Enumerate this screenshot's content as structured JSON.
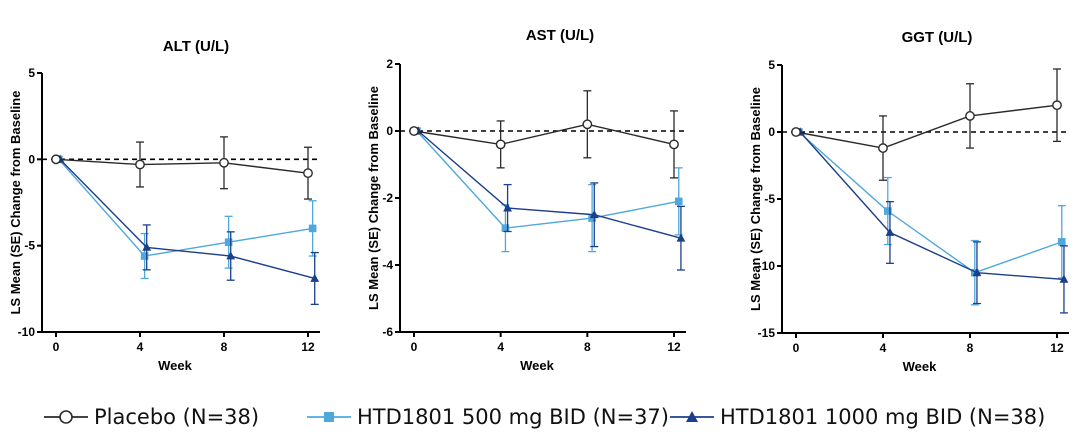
{
  "chart_data": [
    {
      "type": "line",
      "title": "ALT (U/L)",
      "xlabel": "Week",
      "ylabel": "LS Mean (SE) Change from Baseline",
      "x": [
        0,
        4,
        8,
        12
      ],
      "xticks": [
        "0",
        "4",
        "8",
        "12"
      ],
      "ylim": [
        -10,
        5
      ],
      "yticks": [
        5,
        0,
        -5,
        -10
      ],
      "yticklabels": [
        "5",
        "0",
        "-5",
        "-10"
      ],
      "reference_line": 0,
      "series": [
        {
          "name": "Placebo (N=38)",
          "values": [
            0,
            -0.3,
            -0.2,
            -0.8
          ],
          "errors": [
            0,
            1.3,
            1.5,
            1.5
          ]
        },
        {
          "name": "HTD1801 500 mg BID (N=37)",
          "values": [
            0,
            -5.6,
            -4.8,
            -4.0
          ],
          "errors": [
            0,
            1.3,
            1.5,
            1.6
          ]
        },
        {
          "name": "HTD1801 1000 mg BID (N=38)",
          "values": [
            0,
            -5.1,
            -5.6,
            -6.9
          ],
          "errors": [
            0,
            1.3,
            1.4,
            1.5
          ]
        }
      ]
    },
    {
      "type": "line",
      "title": "AST (U/L)",
      "xlabel": "Week",
      "ylabel": "LS Mean (SE) Change from Baseline",
      "x": [
        0,
        4,
        8,
        12
      ],
      "xticks": [
        "0",
        "4",
        "8",
        "12"
      ],
      "ylim": [
        -6,
        2
      ],
      "yticks": [
        2,
        0,
        -2,
        -4,
        -6
      ],
      "yticklabels": [
        "2",
        "0",
        "-2",
        "-4",
        "-6"
      ],
      "reference_line": 0,
      "series": [
        {
          "name": "Placebo (N=38)",
          "values": [
            0,
            -0.4,
            0.2,
            -0.4
          ],
          "errors": [
            0,
            0.7,
            1.0,
            1.0
          ]
        },
        {
          "name": "HTD1801 500 mg BID (N=37)",
          "values": [
            0,
            -2.9,
            -2.6,
            -2.1
          ],
          "errors": [
            0,
            0.7,
            1.0,
            1.0
          ]
        },
        {
          "name": "HTD1801 1000 mg BID (N=38)",
          "values": [
            0,
            -2.3,
            -2.5,
            -3.2
          ],
          "errors": [
            0,
            0.7,
            0.95,
            0.95
          ]
        }
      ]
    },
    {
      "type": "line",
      "title": "GGT (U/L)",
      "xlabel": "Week",
      "ylabel": "LS Mean (SE) Change from Baseline",
      "x": [
        0,
        4,
        8,
        12
      ],
      "xticks": [
        "0",
        "4",
        "8",
        "12"
      ],
      "ylim": [
        -15,
        5
      ],
      "yticks": [
        5,
        0,
        -5,
        -10,
        -15
      ],
      "yticklabels": [
        "5",
        "0",
        "-5",
        "-10",
        "-15"
      ],
      "reference_line": 0,
      "series": [
        {
          "name": "Placebo (N=38)",
          "values": [
            0,
            -1.2,
            1.2,
            2.0
          ],
          "errors": [
            0,
            2.4,
            2.4,
            2.7
          ]
        },
        {
          "name": "HTD1801 500 mg BID (N=37)",
          "values": [
            0,
            -5.9,
            -10.5,
            -8.2
          ],
          "errors": [
            0,
            2.5,
            2.4,
            2.7
          ]
        },
        {
          "name": "HTD1801 1000 mg BID (N=38)",
          "values": [
            0,
            -7.5,
            -10.5,
            -11.0
          ],
          "errors": [
            0,
            2.3,
            2.3,
            2.5
          ]
        }
      ]
    }
  ],
  "legend": {
    "items": [
      {
        "label": "Placebo (N=38)",
        "color": "#2a2a2a",
        "marker": "circle"
      },
      {
        "label": "HTD1801 500 mg BID (N=37)",
        "color": "#4fa8dc",
        "marker": "square"
      },
      {
        "label": "HTD1801 1000 mg BID (N=38)",
        "color": "#1c3f8a",
        "marker": "triangle"
      }
    ]
  },
  "colors": {
    "placebo": "#2a2a2a",
    "dose500": "#4fa8dc",
    "dose1000": "#1c3f8a",
    "axis": "#000000"
  }
}
